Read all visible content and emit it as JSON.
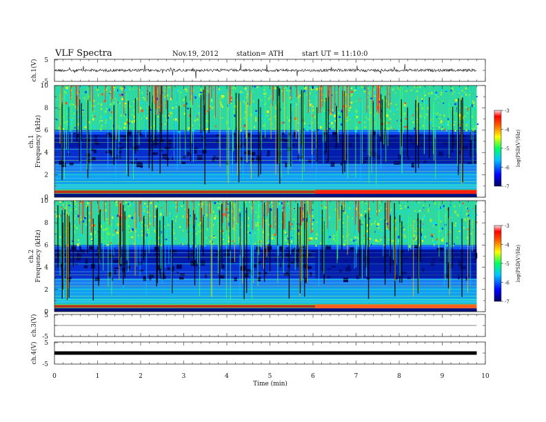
{
  "header": {
    "title": "VLF Spectra",
    "date": "Nov.19, 2012",
    "station": "station= ATH",
    "start_ut": "start  UT  =   11:10:0"
  },
  "chart_data": [
    {
      "panel": "ch1-waveform",
      "type": "line",
      "ylabel": "ch.1(V)",
      "yticks": [
        "5",
        "-5"
      ],
      "ylim": [
        -5,
        5
      ],
      "xlim": [
        0,
        10
      ]
    },
    {
      "panel": "ch1-spectrogram",
      "type": "heatmap",
      "ylabel": "ch.1\nFrequency  (kHz)",
      "ylabel_lines": [
        "ch.1",
        "Frequency  (kHz)"
      ],
      "yticks": [
        0,
        2,
        4,
        6,
        8,
        10
      ],
      "ylim": [
        0,
        10
      ],
      "xlim": [
        0,
        9.8
      ],
      "colorbar": {
        "label": "log(PSD(V²/Hz)",
        "ticks": [
          "-3",
          "-4",
          "-5",
          "-6",
          "-7"
        ],
        "range": [
          -7,
          -3
        ],
        "colors": [
          "#000080",
          "#0000ff",
          "#00c0ff",
          "#00ff80",
          "#ffff00",
          "#ff8000",
          "#ff0000",
          "#ffffff"
        ]
      }
    },
    {
      "panel": "ch2-spectrogram",
      "type": "heatmap",
      "ylabel": "ch.2\nFrequency  (kHz)",
      "ylabel_lines": [
        "ch.2",
        "Frequency  (kHz)"
      ],
      "yticks": [
        0,
        2,
        4,
        6,
        8,
        10
      ],
      "ylim": [
        0,
        10
      ],
      "xlim": [
        0,
        9.8
      ],
      "colorbar": {
        "label": "log(PSD(V²/Hz)",
        "ticks": [
          "-3",
          "-4",
          "-5",
          "-6",
          "-7"
        ],
        "range": [
          -7,
          -3
        ]
      }
    },
    {
      "panel": "ch3-waveform",
      "type": "line",
      "ylabel": "ch.3(V)",
      "yticks": [
        "5",
        "-5"
      ],
      "ylim": [
        -5,
        5
      ]
    },
    {
      "panel": "ch4-waveform",
      "type": "line",
      "ylabel": "ch.4(V)",
      "yticks": [
        "5",
        "-5"
      ],
      "ylim": [
        -5,
        5
      ]
    }
  ],
  "xaxis": {
    "label": "Time  (min)",
    "ticks": [
      "0",
      "1",
      "2",
      "3",
      "4",
      "5",
      "6",
      "7",
      "8",
      "9",
      "10"
    ],
    "range": [
      0,
      10
    ]
  }
}
